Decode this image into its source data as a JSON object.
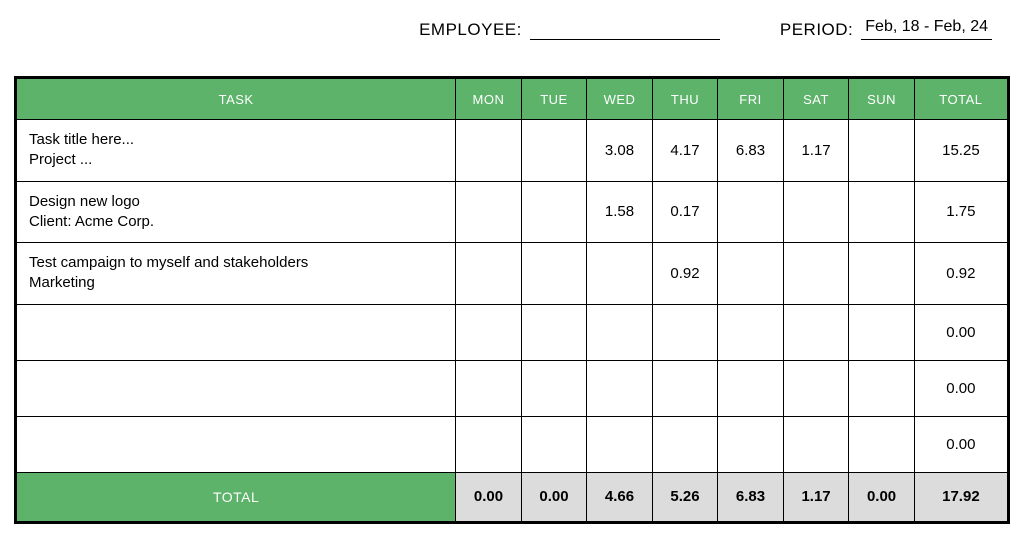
{
  "header": {
    "employee_label": "EMPLOYEE:",
    "employee_value": "",
    "period_label": "PERIOD:",
    "period_value": "Feb, 18 - Feb, 24"
  },
  "table": {
    "header_bg": "#5cb369",
    "footer_label_bg": "#5cb369",
    "footer_value_bg": "#dcdcdc",
    "columns": {
      "task": "TASK",
      "days": [
        "MON",
        "TUE",
        "WED",
        "THU",
        "FRI",
        "SAT",
        "SUN"
      ],
      "total": "TOTAL"
    },
    "rows": [
      {
        "title": "Task title here...",
        "sub": "Project ...",
        "values": [
          "",
          "",
          "3.08",
          "4.17",
          "6.83",
          "1.17",
          ""
        ],
        "total": "15.25"
      },
      {
        "title": "Design new logo",
        "sub": "Client: Acme Corp.",
        "values": [
          "",
          "",
          "1.58",
          "0.17",
          "",
          "",
          ""
        ],
        "total": "1.75"
      },
      {
        "title": "Test campaign to myself and stakeholders",
        "sub": "Marketing",
        "values": [
          "",
          "",
          "",
          "0.92",
          "",
          "",
          ""
        ],
        "total": "0.92"
      },
      {
        "title": "",
        "sub": "",
        "values": [
          "",
          "",
          "",
          "",
          "",
          "",
          ""
        ],
        "total": "0.00"
      },
      {
        "title": "",
        "sub": "",
        "values": [
          "",
          "",
          "",
          "",
          "",
          "",
          ""
        ],
        "total": "0.00"
      },
      {
        "title": "",
        "sub": "",
        "values": [
          "",
          "",
          "",
          "",
          "",
          "",
          ""
        ],
        "total": "0.00"
      }
    ],
    "footer": {
      "label": "TOTAL",
      "values": [
        "0.00",
        "0.00",
        "4.66",
        "5.26",
        "6.83",
        "1.17",
        "0.00"
      ],
      "grand_total": "17.92"
    }
  }
}
